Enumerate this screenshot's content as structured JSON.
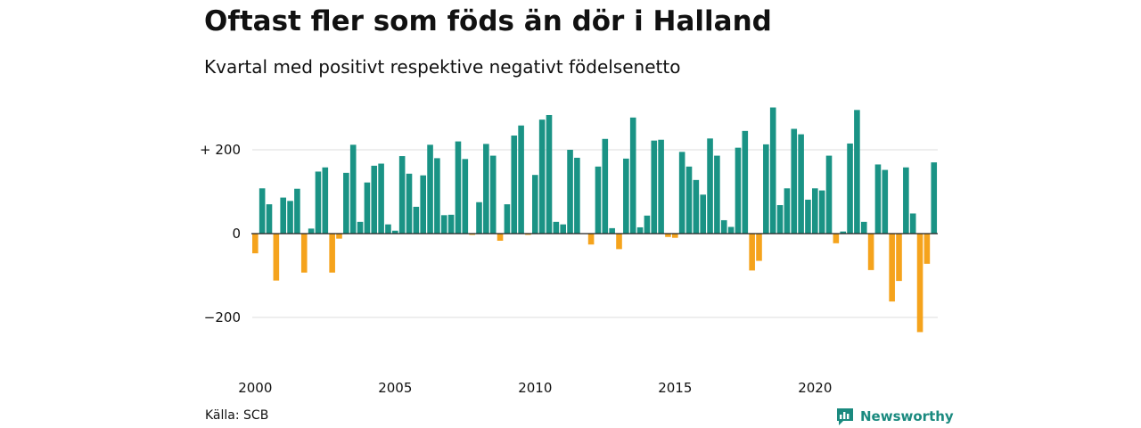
{
  "title": "Oftast fler som föds än dör i Halland",
  "subtitle": "Kvartal med positivt respektive negativt födelsenetto",
  "source": "Källa: SCB",
  "brand": {
    "name": "Newsworthy",
    "icon": "newsworthy-logo-icon"
  },
  "colors": {
    "positive": "#1a9385",
    "negative": "#f5a31c",
    "grid": "#dddddd",
    "axis": "#222222"
  },
  "chart_data": {
    "type": "bar",
    "x_tick_labels": [
      "2000",
      "2005",
      "2010",
      "2015",
      "2020"
    ],
    "x_tick_years": [
      2000,
      2005,
      2010,
      2015,
      2020
    ],
    "y_tick_labels": [
      "+ 200",
      "0",
      "−200"
    ],
    "y_tick_values": [
      200,
      0,
      -200
    ],
    "ylim": [
      -290,
      300
    ],
    "start_year": 2000,
    "periods_per_year": 4,
    "values": [
      -47,
      108,
      70,
      -112,
      86,
      78,
      107,
      -93,
      12,
      148,
      158,
      -93,
      -12,
      145,
      212,
      28,
      122,
      162,
      167,
      22,
      7,
      185,
      143,
      64,
      139,
      212,
      180,
      44,
      45,
      220,
      178,
      -3,
      75,
      214,
      186,
      -17,
      70,
      234,
      258,
      -3,
      140,
      272,
      283,
      28,
      22,
      200,
      181,
      0,
      -26,
      160,
      226,
      13,
      -37,
      179,
      277,
      15,
      43,
      222,
      224,
      -8,
      -10,
      195,
      160,
      128,
      93,
      227,
      186,
      32,
      16,
      205,
      245,
      -88,
      -65,
      213,
      301,
      68,
      108,
      250,
      237,
      81,
      108,
      103,
      186,
      -23,
      5,
      215,
      295,
      28,
      -87,
      165,
      152,
      -162,
      -113,
      158,
      48,
      -235,
      -72,
      170
    ]
  }
}
